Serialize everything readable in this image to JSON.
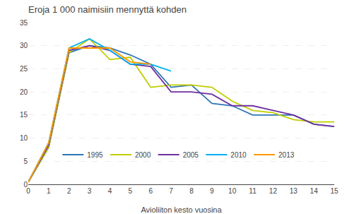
{
  "chart_data": {
    "type": "line",
    "title": "Eroja 1 000 naimisiin mennyttä kohden",
    "xlabel": "Avioliiton kesto vuosina",
    "x": [
      0,
      1,
      2,
      3,
      4,
      5,
      6,
      7,
      8,
      9,
      10,
      11,
      12,
      13,
      14,
      15
    ],
    "series": [
      {
        "name": "1995",
        "color": "#2E75B6",
        "values": [
          0.5,
          8,
          28.5,
          30.0,
          29.5,
          28.0,
          26.0,
          21.0,
          21.5,
          17.5,
          17.0,
          15.0,
          15.0,
          15.0,
          13.0,
          12.5
        ]
      },
      {
        "name": "2000",
        "color": "#BFCE00",
        "values": [
          0.5,
          8,
          28.5,
          31.5,
          27.0,
          27.5,
          21.0,
          21.5,
          21.5,
          21.0,
          18.0,
          16.0,
          15.5,
          14.0,
          13.5,
          13.5
        ]
      },
      {
        "name": "2005",
        "color": "#7030A0",
        "values": [
          0.5,
          8.5,
          29.0,
          30.0,
          29.0,
          26.0,
          25.5,
          20.0,
          20.0,
          19.5,
          17.0,
          17.0,
          16.0,
          15.0,
          13.0,
          12.5
        ]
      },
      {
        "name": "2010",
        "color": "#00B0F0",
        "values": [
          0.5,
          9.0,
          29.5,
          31.5,
          29.0,
          26.0,
          26.0,
          24.5,
          null,
          null,
          null,
          null,
          null,
          null,
          null,
          null
        ]
      },
      {
        "name": "2013",
        "color": "#FF9900",
        "values": [
          0.5,
          9.0,
          29.5,
          29.5,
          29.5,
          26.5,
          26.0,
          null,
          null,
          null,
          null,
          null,
          null,
          null,
          null,
          null
        ]
      }
    ],
    "xlim": [
      0,
      15
    ],
    "ylim": [
      0,
      35
    ],
    "xticks": [
      0,
      1,
      2,
      3,
      4,
      5,
      6,
      7,
      8,
      9,
      10,
      11,
      12,
      13,
      14,
      15
    ],
    "yticks": [
      0,
      5,
      10,
      15,
      20,
      25,
      30,
      35
    ],
    "grid": true,
    "legend": "lower left"
  }
}
